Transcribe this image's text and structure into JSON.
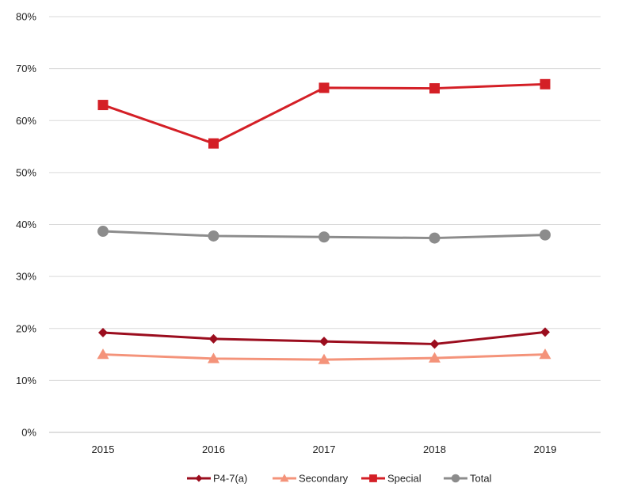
{
  "chart_data": {
    "type": "line",
    "x": [
      "2015",
      "2016",
      "2017",
      "2018",
      "2019"
    ],
    "ylim": [
      0,
      80
    ],
    "yticks": [
      "0%",
      "10%",
      "20%",
      "30%",
      "40%",
      "50%",
      "60%",
      "70%",
      "80%"
    ],
    "grid": true,
    "legend_position": "bottom",
    "series": [
      {
        "name": "P4-7(a)",
        "values": [
          19.2,
          18.0,
          17.5,
          17.0,
          19.3
        ],
        "color": "#9b0d1e",
        "marker": "diamond"
      },
      {
        "name": "Secondary",
        "values": [
          15.0,
          14.2,
          14.0,
          14.3,
          15.0
        ],
        "color": "#f4937a",
        "marker": "triangle"
      },
      {
        "name": "Special",
        "values": [
          63.0,
          55.6,
          66.3,
          66.2,
          67.0
        ],
        "color": "#d41f26",
        "marker": "square"
      },
      {
        "name": "Total",
        "values": [
          38.7,
          37.8,
          37.6,
          37.4,
          38.0
        ],
        "color": "#8c8c8c",
        "marker": "circle"
      }
    ]
  }
}
